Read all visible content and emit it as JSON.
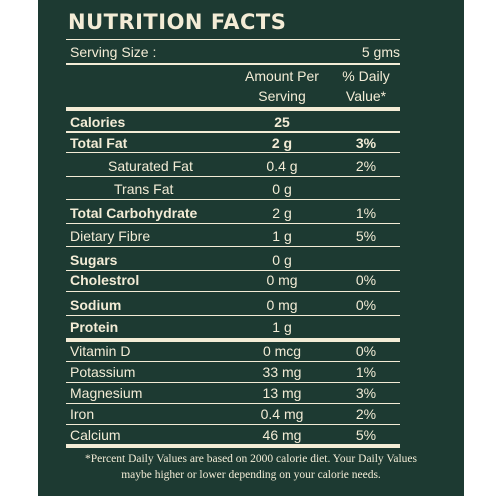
{
  "title": "NUTRITION FACTS",
  "serving": {
    "label": "Serving Size :",
    "value": "5 gms"
  },
  "headers": {
    "amount_line1": "Amount Per",
    "amount_line2": "Serving",
    "pct_line1": "% Daily",
    "pct_line2": "Value*"
  },
  "rows": [
    {
      "name": "Calories",
      "amount": "25",
      "pct": ""
    },
    {
      "name": "Total Fat",
      "amount": "2 g",
      "pct": "3%"
    },
    {
      "name": "Saturated Fat",
      "amount": "0.4 g",
      "pct": "2%"
    },
    {
      "name": "Trans Fat",
      "amount": "0 g",
      "pct": ""
    },
    {
      "name": "Total Carbohydrate",
      "amount": "2 g",
      "pct": "1%"
    },
    {
      "name": "Dietary Fibre",
      "amount": "1 g",
      "pct": "5%"
    },
    {
      "name": "Sugars",
      "amount": "0 g",
      "pct": ""
    },
    {
      "name": "Cholestrol",
      "amount": "0 mg",
      "pct": "0%"
    },
    {
      "name": "Sodium",
      "amount": "0 mg",
      "pct": "0%"
    },
    {
      "name": "Protein",
      "amount": "1 g",
      "pct": ""
    },
    {
      "name": "Vitamin D",
      "amount": "0 mcg",
      "pct": "0%"
    },
    {
      "name": "Potassium",
      "amount": "33 mg",
      "pct": "1%"
    },
    {
      "name": "Magnesium",
      "amount": "13 mg",
      "pct": "3%"
    },
    {
      "name": "Iron",
      "amount": "0.4 mg",
      "pct": "2%"
    },
    {
      "name": "Calcium",
      "amount": "46 mg",
      "pct": "5%"
    }
  ],
  "footnote_line1": "*Percent Daily Values are based on 2000 calorie diet. Your Daily Values",
  "footnote_line2": "maybe higher or lower depending on your calorie needs.",
  "colors": {
    "panel": "#1d3a32",
    "text": "#f3ecd6"
  }
}
